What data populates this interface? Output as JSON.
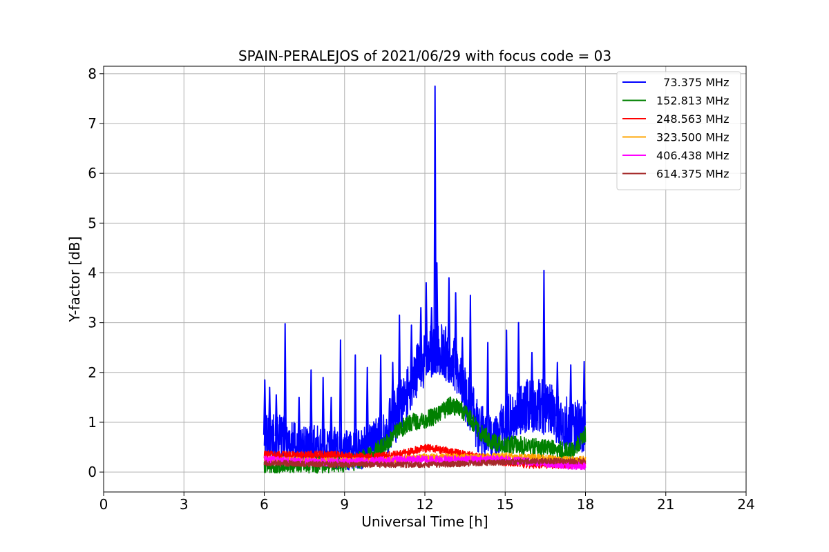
{
  "chart_data": {
    "type": "line",
    "title": "SPAIN-PERALEJOS of 2021/06/29 with focus code = 03",
    "xlabel": "Universal Time [h]",
    "ylabel": "Y-factor [dB]",
    "xlim": [
      0,
      24
    ],
    "ylim": [
      -0.4,
      8.15
    ],
    "xticks": [
      0,
      3,
      6,
      9,
      12,
      15,
      18,
      21,
      24
    ],
    "yticks": [
      0,
      1,
      2,
      3,
      4,
      5,
      6,
      7,
      8
    ],
    "grid": true,
    "legend_position": "top-right",
    "series": [
      {
        "name": "  73.375 MHz",
        "color": "#0000ff",
        "x": [
          6.0,
          6.5,
          7.0,
          7.5,
          8.0,
          8.5,
          9.0,
          9.5,
          10.0,
          10.5,
          11.0,
          11.5,
          12.0,
          12.5,
          13.0,
          13.5,
          14.0,
          14.5,
          15.0,
          15.5,
          16.0,
          16.5,
          17.0,
          17.5,
          18.0
        ],
        "y": [
          0.75,
          0.72,
          0.6,
          0.55,
          0.5,
          0.5,
          0.45,
          0.45,
          0.55,
          0.8,
          1.2,
          1.8,
          2.3,
          2.5,
          2.3,
          1.6,
          0.9,
          0.65,
          0.95,
          1.3,
          1.35,
          1.3,
          1.1,
          0.9,
          0.95
        ],
        "peaks": [
          {
            "x": 6.02,
            "y": 1.85
          },
          {
            "x": 6.2,
            "y": 1.7
          },
          {
            "x": 6.45,
            "y": 1.55
          },
          {
            "x": 6.78,
            "y": 2.98
          },
          {
            "x": 7.3,
            "y": 1.5
          },
          {
            "x": 7.75,
            "y": 2.05
          },
          {
            "x": 8.2,
            "y": 1.9
          },
          {
            "x": 8.5,
            "y": 1.5
          },
          {
            "x": 8.85,
            "y": 2.65
          },
          {
            "x": 9.4,
            "y": 2.35
          },
          {
            "x": 9.85,
            "y": 2.1
          },
          {
            "x": 10.35,
            "y": 2.35
          },
          {
            "x": 10.8,
            "y": 2.2
          },
          {
            "x": 11.05,
            "y": 3.15
          },
          {
            "x": 11.5,
            "y": 2.95
          },
          {
            "x": 11.85,
            "y": 3.3
          },
          {
            "x": 12.05,
            "y": 3.8
          },
          {
            "x": 12.25,
            "y": 3.3
          },
          {
            "x": 12.38,
            "y": 7.75
          },
          {
            "x": 12.45,
            "y": 4.2
          },
          {
            "x": 12.9,
            "y": 3.9
          },
          {
            "x": 13.15,
            "y": 3.6
          },
          {
            "x": 13.4,
            "y": 2.7
          },
          {
            "x": 13.7,
            "y": 3.55
          },
          {
            "x": 14.35,
            "y": 2.6
          },
          {
            "x": 15.05,
            "y": 2.85
          },
          {
            "x": 15.5,
            "y": 3.0
          },
          {
            "x": 16.0,
            "y": 2.4
          },
          {
            "x": 16.45,
            "y": 4.05
          },
          {
            "x": 16.95,
            "y": 2.2
          },
          {
            "x": 17.45,
            "y": 2.15
          },
          {
            "x": 17.95,
            "y": 2.22
          }
        ]
      },
      {
        "name": "152.813 MHz",
        "color": "#008000",
        "x": [
          6.0,
          7.0,
          8.0,
          9.0,
          9.5,
          10.0,
          10.5,
          11.0,
          11.5,
          12.0,
          12.5,
          13.0,
          13.5,
          14.0,
          14.5,
          15.0,
          15.5,
          16.0,
          16.5,
          17.0,
          17.5,
          18.0
        ],
        "y": [
          0.15,
          0.14,
          0.15,
          0.18,
          0.22,
          0.35,
          0.55,
          0.85,
          1.0,
          1.05,
          1.15,
          1.35,
          1.2,
          0.85,
          0.62,
          0.55,
          0.55,
          0.5,
          0.48,
          0.45,
          0.42,
          0.75
        ]
      },
      {
        "name": "248.563 MHz",
        "color": "#ff0000",
        "x": [
          6.0,
          7.0,
          8.0,
          9.0,
          10.0,
          11.0,
          12.0,
          12.5,
          13.0,
          14.0,
          15.0,
          16.0,
          17.0,
          18.0
        ],
        "y": [
          0.35,
          0.33,
          0.35,
          0.33,
          0.3,
          0.35,
          0.48,
          0.46,
          0.4,
          0.3,
          0.2,
          0.15,
          0.15,
          0.15
        ]
      },
      {
        "name": "323.500 MHz",
        "color": "#ffa500",
        "x": [
          6.0,
          7.0,
          8.0,
          9.0,
          10.0,
          11.0,
          12.0,
          13.0,
          14.0,
          15.0,
          16.0,
          17.0,
          18.0
        ],
        "y": [
          0.25,
          0.24,
          0.22,
          0.22,
          0.22,
          0.25,
          0.3,
          0.3,
          0.3,
          0.32,
          0.3,
          0.25,
          0.25
        ]
      },
      {
        "name": "406.438 MHz",
        "color": "#ff00ff",
        "x": [
          6.0,
          7.0,
          8.0,
          9.0,
          10.0,
          11.0,
          12.0,
          13.0,
          14.0,
          15.0,
          16.0,
          17.0,
          18.0
        ],
        "y": [
          0.25,
          0.22,
          0.2,
          0.2,
          0.22,
          0.25,
          0.25,
          0.25,
          0.25,
          0.25,
          0.2,
          0.15,
          0.12
        ]
      },
      {
        "name": "614.375 MHz",
        "color": "#a52a2a",
        "x": [
          6.0,
          7.0,
          8.0,
          9.0,
          10.0,
          11.0,
          12.0,
          13.0,
          14.0,
          15.0,
          16.0,
          17.0,
          18.0
        ],
        "y": [
          0.18,
          0.17,
          0.16,
          0.15,
          0.15,
          0.15,
          0.15,
          0.16,
          0.18,
          0.2,
          0.22,
          0.22,
          0.22
        ]
      }
    ]
  }
}
